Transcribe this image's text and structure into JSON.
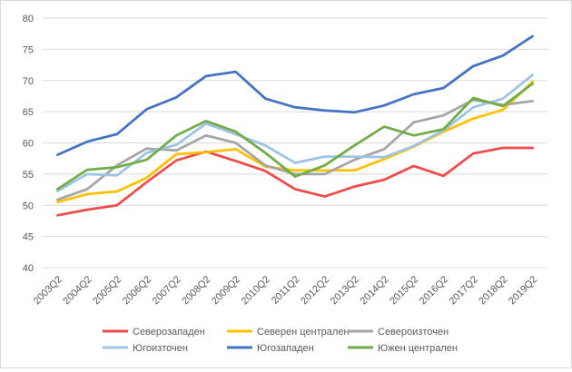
{
  "chart_data": {
    "type": "line",
    "title": "",
    "xlabel": "",
    "ylabel": "",
    "ylim": [
      40,
      80
    ],
    "yticks": [
      40,
      45,
      50,
      55,
      60,
      65,
      70,
      75,
      80
    ],
    "grid": true,
    "legend_position": "bottom",
    "categories": [
      "2003Q2",
      "2004Q2",
      "2005Q2",
      "2006Q2",
      "2007Q2",
      "2008Q2",
      "2009Q2",
      "2010Q2",
      "2011Q2",
      "2012Q2",
      "2013Q2",
      "2014Q2",
      "2015Q2",
      "2016Q2",
      "2017Q2",
      "2018Q2",
      "2019Q2"
    ],
    "series": [
      {
        "name": "Северозападен",
        "color": "#f04a4a",
        "values": [
          48.4,
          49.3,
          50.0,
          53.7,
          57.2,
          58.6,
          57.1,
          55.5,
          52.6,
          51.4,
          53.0,
          54.1,
          56.3,
          54.7,
          58.3,
          59.2,
          59.2
        ]
      },
      {
        "name": "Северен централен",
        "color": "#ffc000",
        "values": [
          50.5,
          51.8,
          52.2,
          54.4,
          58.2,
          58.5,
          59.0,
          56.2,
          55.6,
          55.6,
          55.6,
          57.4,
          59.4,
          61.8,
          63.9,
          65.3,
          69.8
        ]
      },
      {
        "name": "Североизточен",
        "color": "#a5a5a5",
        "values": [
          50.9,
          52.6,
          56.4,
          59.1,
          58.8,
          61.2,
          60.0,
          56.4,
          55.0,
          55.0,
          57.3,
          59.0,
          63.3,
          64.4,
          66.9,
          66.1,
          66.7
        ]
      },
      {
        "name": "Югоизточен",
        "color": "#9dc3e6",
        "values": [
          52.3,
          55.0,
          54.8,
          58.4,
          59.7,
          63.1,
          61.4,
          59.6,
          56.8,
          57.8,
          57.8,
          57.7,
          59.5,
          62.0,
          65.7,
          67.1,
          70.9
        ]
      },
      {
        "name": "Югозападен",
        "color": "#4472c4",
        "values": [
          58.1,
          60.2,
          61.4,
          65.4,
          67.3,
          70.7,
          71.4,
          67.1,
          65.7,
          65.2,
          64.9,
          66.0,
          67.8,
          68.8,
          72.3,
          74.0,
          77.1
        ]
      },
      {
        "name": "Южен централен",
        "color": "#70ad47",
        "values": [
          52.6,
          55.7,
          56.1,
          57.3,
          61.2,
          63.5,
          61.8,
          58.4,
          54.6,
          56.4,
          59.6,
          62.6,
          61.2,
          62.2,
          67.2,
          65.9,
          69.5
        ]
      }
    ]
  }
}
